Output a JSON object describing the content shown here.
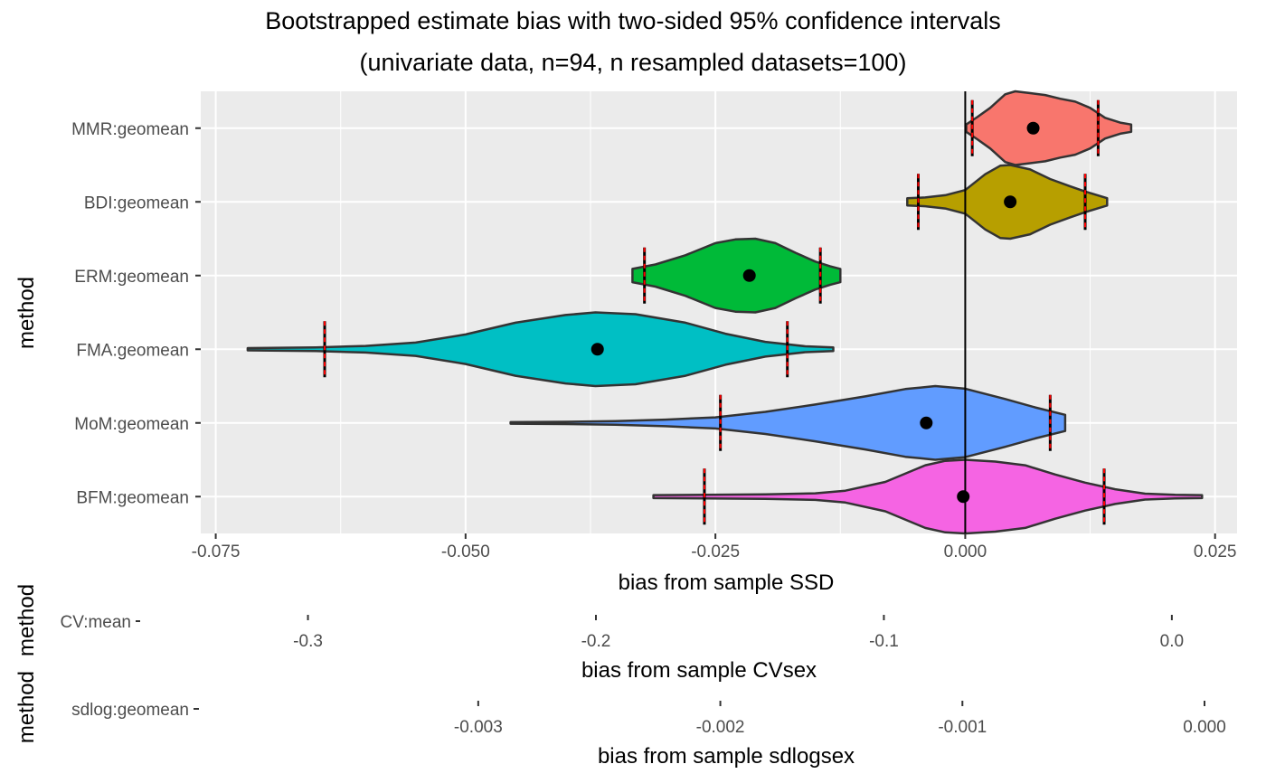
{
  "title_line1": "Bootstrapped estimate bias with two-sided 95% confidence intervals",
  "title_line2": "(univariate data, n=94, n resampled datasets=100)",
  "colors": {
    "panel_bg": "#ebebeb",
    "grid": "#ffffff",
    "violin_outline": "#333333",
    "ci_line_outer": "#000000",
    "ci_line_inner": "#ff0000",
    "point": "#000000",
    "zero_line": "#000000"
  },
  "chart_data": [
    {
      "type": "violin",
      "xlabel": "bias from sample SSD",
      "ylabel": "method",
      "xlim": [
        -0.0765,
        0.0272
      ],
      "x_ticks": [
        -0.075,
        -0.05,
        -0.025,
        0.0,
        0.025
      ],
      "x_tick_labels": [
        "-0.075",
        "-0.050",
        "-0.025",
        "0.000",
        "0.025"
      ],
      "reference_line_x": 0,
      "grid": true,
      "series": [
        {
          "name": "BFM:geomean",
          "color": "#f564e3",
          "min": -0.0312,
          "max": 0.0237,
          "point": -0.0002,
          "ci_low": -0.0261,
          "ci_high": 0.0139,
          "density": [
            [
              -0.0312,
              0.04
            ],
            [
              -0.026,
              0.05
            ],
            [
              -0.02,
              0.06
            ],
            [
              -0.015,
              0.09
            ],
            [
              -0.012,
              0.16
            ],
            [
              -0.008,
              0.4
            ],
            [
              -0.004,
              0.85
            ],
            [
              -0.002,
              0.97
            ],
            [
              0.0,
              1.0
            ],
            [
              0.003,
              0.95
            ],
            [
              0.006,
              0.85
            ],
            [
              0.009,
              0.6
            ],
            [
              0.012,
              0.38
            ],
            [
              0.015,
              0.2
            ],
            [
              0.018,
              0.08
            ],
            [
              0.021,
              0.05
            ],
            [
              0.0237,
              0.04
            ]
          ]
        },
        {
          "name": "MoM:geomean",
          "color": "#619cff",
          "min": -0.0455,
          "max": 0.01,
          "point": -0.0039,
          "ci_low": -0.0245,
          "ci_high": 0.0085,
          "density": [
            [
              -0.0455,
              0.02
            ],
            [
              -0.04,
              0.03
            ],
            [
              -0.035,
              0.05
            ],
            [
              -0.03,
              0.09
            ],
            [
              -0.025,
              0.15
            ],
            [
              -0.02,
              0.3
            ],
            [
              -0.015,
              0.5
            ],
            [
              -0.01,
              0.72
            ],
            [
              -0.006,
              0.92
            ],
            [
              -0.003,
              1.0
            ],
            [
              0.0,
              0.93
            ],
            [
              0.004,
              0.65
            ],
            [
              0.007,
              0.42
            ],
            [
              0.01,
              0.22
            ]
          ]
        },
        {
          "name": "FMA:geomean",
          "color": "#00bfc4",
          "min": -0.0718,
          "max": -0.0132,
          "point": -0.0368,
          "ci_low": -0.0641,
          "ci_high": -0.0178,
          "density": [
            [
              -0.0718,
              0.03
            ],
            [
              -0.065,
              0.05
            ],
            [
              -0.06,
              0.09
            ],
            [
              -0.055,
              0.18
            ],
            [
              -0.05,
              0.4
            ],
            [
              -0.045,
              0.72
            ],
            [
              -0.04,
              0.93
            ],
            [
              -0.037,
              1.0
            ],
            [
              -0.033,
              0.95
            ],
            [
              -0.028,
              0.72
            ],
            [
              -0.024,
              0.42
            ],
            [
              -0.02,
              0.2
            ],
            [
              -0.016,
              0.08
            ],
            [
              -0.0132,
              0.05
            ]
          ]
        },
        {
          "name": "ERM:geomean",
          "color": "#00ba38",
          "min": -0.0333,
          "max": -0.0125,
          "point": -0.0216,
          "ci_low": -0.0321,
          "ci_high": -0.0145,
          "density": [
            [
              -0.0333,
              0.18
            ],
            [
              -0.031,
              0.3
            ],
            [
              -0.028,
              0.55
            ],
            [
              -0.025,
              0.88
            ],
            [
              -0.023,
              0.98
            ],
            [
              -0.021,
              1.0
            ],
            [
              -0.019,
              0.88
            ],
            [
              -0.017,
              0.62
            ],
            [
              -0.015,
              0.38
            ],
            [
              -0.0135,
              0.25
            ],
            [
              -0.0125,
              0.18
            ]
          ]
        },
        {
          "name": "BDI:geomean",
          "color": "#b79f00",
          "min": -0.0058,
          "max": 0.0142,
          "point": 0.0045,
          "ci_low": -0.0047,
          "ci_high": 0.012,
          "density": [
            [
              -0.0058,
              0.1
            ],
            [
              -0.004,
              0.12
            ],
            [
              -0.002,
              0.18
            ],
            [
              0.0,
              0.32
            ],
            [
              0.002,
              0.75
            ],
            [
              0.0035,
              0.98
            ],
            [
              0.0045,
              1.0
            ],
            [
              0.0065,
              0.88
            ],
            [
              0.0085,
              0.62
            ],
            [
              0.0105,
              0.42
            ],
            [
              0.012,
              0.28
            ],
            [
              0.0142,
              0.1
            ]
          ]
        },
        {
          "name": "MMR:geomean",
          "color": "#f8766d",
          "min": 0.0001,
          "max": 0.0166,
          "point": 0.0068,
          "ci_low": 0.0007,
          "ci_high": 0.0133,
          "density": [
            [
              0.0001,
              0.1
            ],
            [
              0.0012,
              0.3
            ],
            [
              0.0025,
              0.55
            ],
            [
              0.004,
              0.92
            ],
            [
              0.005,
              1.0
            ],
            [
              0.0065,
              0.95
            ],
            [
              0.008,
              0.9
            ],
            [
              0.0095,
              0.8
            ],
            [
              0.011,
              0.72
            ],
            [
              0.0125,
              0.55
            ],
            [
              0.014,
              0.28
            ],
            [
              0.0155,
              0.15
            ],
            [
              0.0166,
              0.1
            ]
          ]
        }
      ]
    },
    {
      "type": "scatter",
      "ylabel": "method",
      "xlabel": "bias from sample CVsex",
      "categories": [
        "CV:mean"
      ],
      "x_ticks": [
        -0.3,
        -0.2,
        -0.1,
        0.0
      ],
      "x_tick_labels": [
        "-0.3",
        "-0.2",
        "-0.1",
        "0.0"
      ],
      "xlim": [
        -0.3567,
        0.0283
      ]
    },
    {
      "type": "scatter",
      "ylabel": "method",
      "xlabel": "bias from sample sdlogsex",
      "categories": [
        "sdlog:geomean"
      ],
      "x_ticks": [
        -0.003,
        -0.002,
        -0.001,
        0.0
      ],
      "x_tick_labels": [
        "-0.003",
        "-0.002",
        "-0.001",
        "0.000"
      ],
      "xlim": [
        -0.004135,
        0.0
      ]
    }
  ]
}
